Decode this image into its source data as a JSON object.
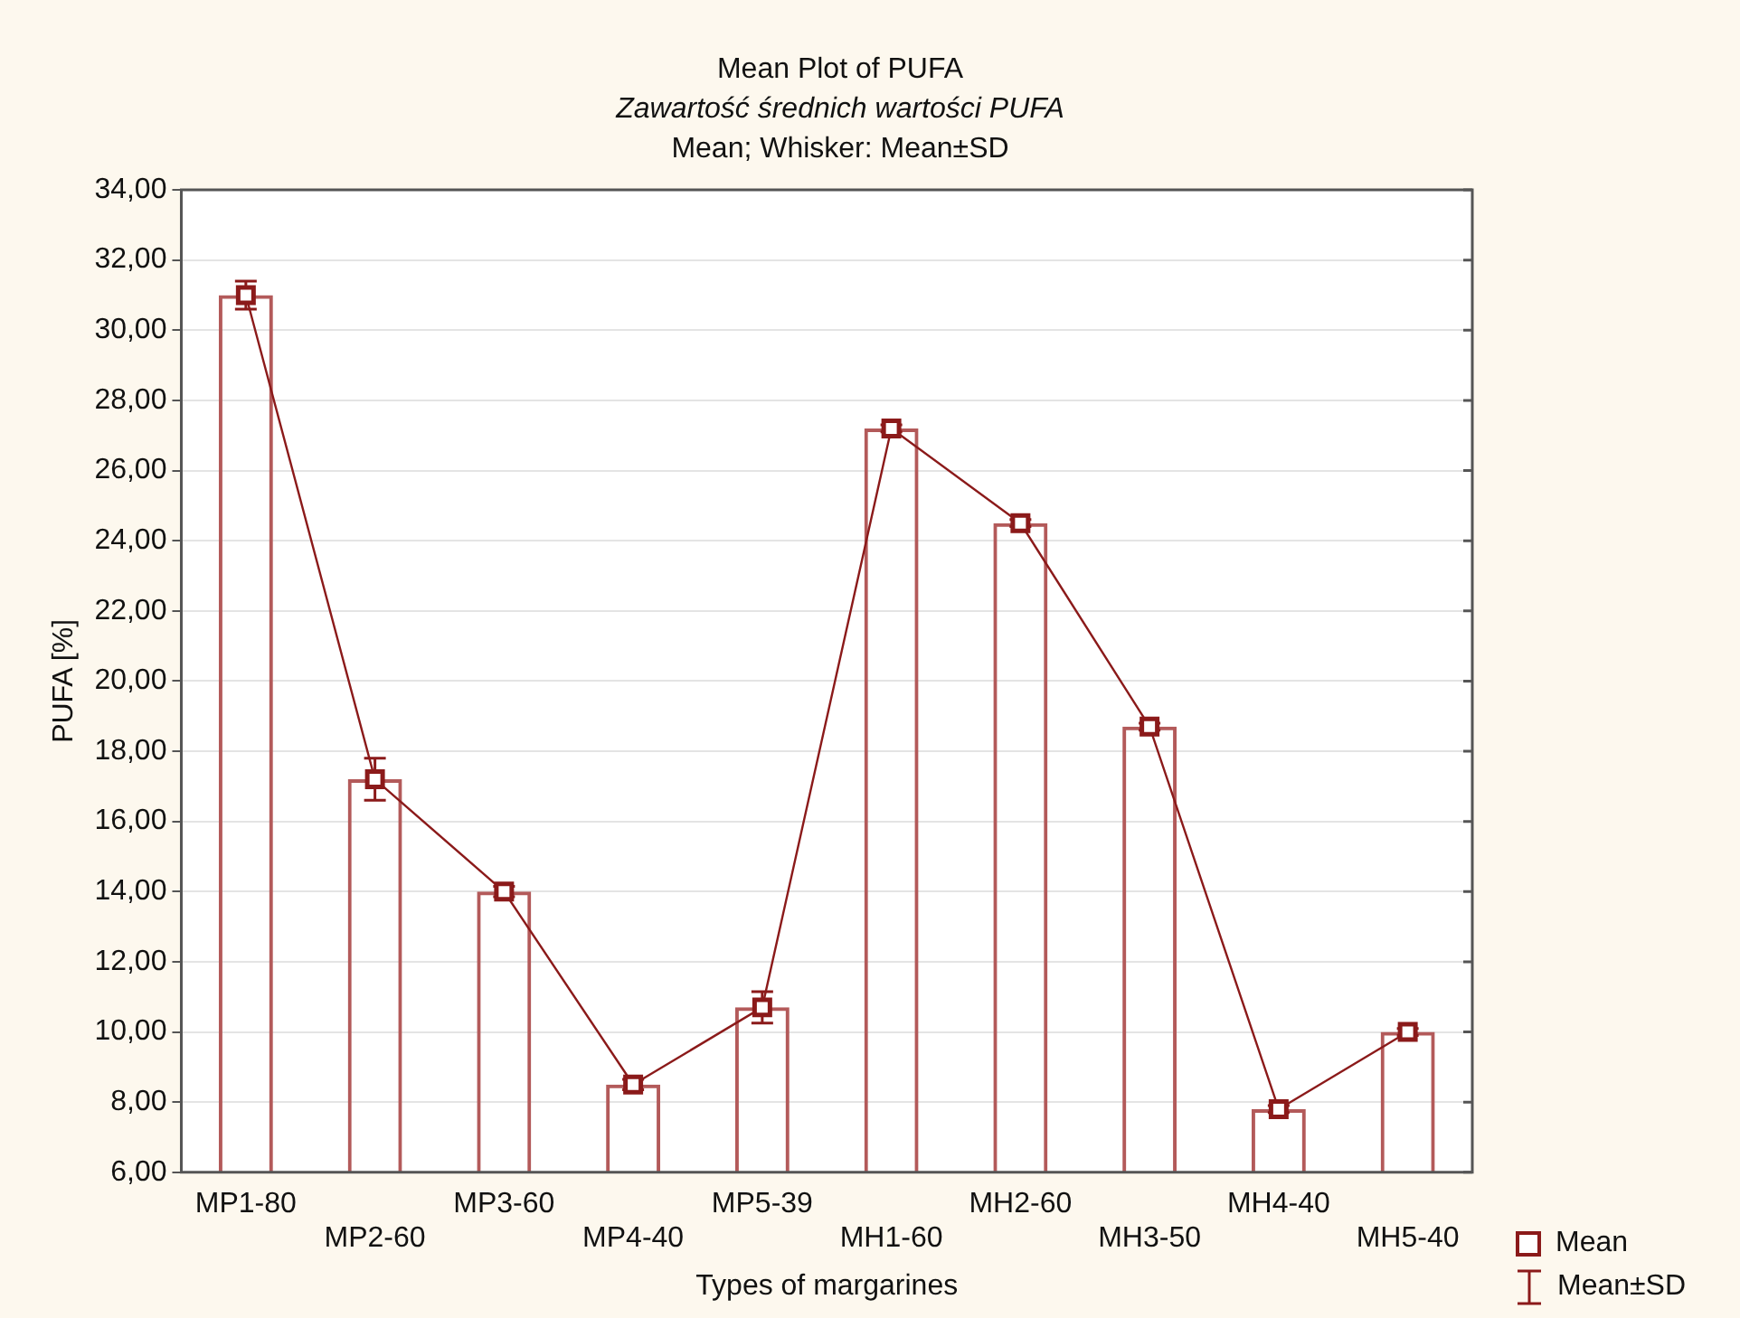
{
  "chart_data": {
    "type": "bar",
    "title": "Mean Plot of PUFA",
    "subtitle": "Zawartość średnich wartości PUFA",
    "xlabel": "Types of margarines",
    "ylabel": "PUFA [%]",
    "annotations": [
      "Mean; Whisker: Mean±SD",
      "Mean±SD"
    ],
    "categories": [
      "MP1-80",
      "MP2-60",
      "MP3-60",
      "MP4-40",
      "MP5-39",
      "MH1-60",
      "MH2-60",
      "MH3-50",
      "MH4-40",
      "MH5-40"
    ],
    "series": [
      {
        "color": "#b35a5a",
        "values": [
          31.0,
          17.2,
          14.0,
          8.5,
          10.7,
          27.2,
          24.5,
          18.7,
          7.8,
          10.0
        ]
      },
      {
        "type": "line",
        "name": "Mean",
        "color": "#8b1a1a",
        "values": [
          31.0,
          17.2,
          14.0,
          8.5,
          10.7,
          27.2,
          24.5,
          18.7,
          7.8,
          10.0
        ],
        "errors": [
          0.4,
          0.6,
          0.15,
          0.15,
          0.45,
          0.1,
          0.1,
          0.1,
          0.1,
          0.1
        ]
      }
    ],
    "ylim": [
      6,
      34
    ],
    "yticks": [
      {
        "value": 6,
        "label": "6,00"
      },
      {
        "value": 8,
        "label": "8,00"
      },
      {
        "value": 10,
        "label": "10,00"
      },
      {
        "value": 12,
        "label": "12,00"
      },
      {
        "value": 14,
        "label": "14,00"
      },
      {
        "value": 16,
        "label": "16,00"
      },
      {
        "value": 18,
        "label": "18,00"
      },
      {
        "value": 20,
        "label": "20,00"
      },
      {
        "value": 22,
        "label": "22,00"
      },
      {
        "value": 24,
        "label": "24,00"
      },
      {
        "value": 26,
        "label": "26,00"
      },
      {
        "value": 28,
        "label": "28,00"
      },
      {
        "value": 30,
        "label": "30,00"
      },
      {
        "value": 32,
        "label": "32,00"
      },
      {
        "value": 34,
        "label": "34,00"
      }
    ],
    "grid": "y",
    "legend": "bottom right",
    "marker": "square",
    "line_style": "solid"
  }
}
